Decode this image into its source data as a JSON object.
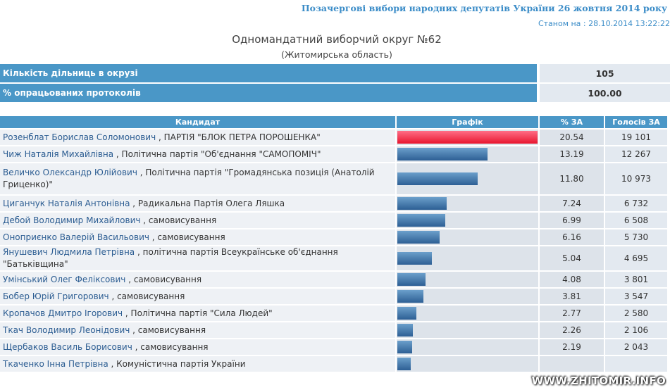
{
  "header": {
    "title": "Позачергові вибори народних депутатів України 26 жовтня 2014 року",
    "date": "Станом на : 28.10.2014 13:22:22"
  },
  "district": {
    "title": "Одномандатний виборчий округ №62",
    "region": "(Житомирська область)"
  },
  "summary": [
    {
      "label": "Кількість дільниць в окрузі",
      "value": "105"
    },
    {
      "label": "% опрацьованих протоколів",
      "value": "100.00"
    }
  ],
  "table": {
    "headers": {
      "candidate": "Кандидат",
      "graph": "Графік",
      "percent": "% ЗА",
      "votes": "Голосів ЗА"
    },
    "rows": [
      {
        "name": "Розенблат Борислав Соломонович",
        "party": ", ПАРТІЯ \"БЛОК ПЕТРА ПОРОШЕНКА\"",
        "percent": "20.54",
        "votes": "19 101",
        "share": 20.54
      },
      {
        "name": "Чиж Наталія Михайлівна",
        "party": ", Політична партія \"Об'єднання \"САМОПОМІЧ\"",
        "percent": "13.19",
        "votes": "12 267",
        "share": 13.19
      },
      {
        "name": "Величко Олександр Юлійович",
        "party": ", Політична партія \"Громадянська позиція (Анатолій Гриценко)\"",
        "percent": "11.80",
        "votes": "10 973",
        "share": 11.8
      },
      {
        "name": "Циганчук Наталія Антонівна",
        "party": ", Радикальна Партія Олега Ляшка",
        "percent": "7.24",
        "votes": "6 732",
        "share": 7.24
      },
      {
        "name": "Дебой Володимир Михайлович",
        "party": ", самовисування",
        "percent": "6.99",
        "votes": "6 508",
        "share": 6.99
      },
      {
        "name": "Оноприєнко Валерій Васильович",
        "party": ", самовисування",
        "percent": "6.16",
        "votes": "5 730",
        "share": 6.16
      },
      {
        "name": "Янушевич Людмила Петрівна",
        "party": ", політична партія Всеукраїнське об'єднання \"Батьківщина\"",
        "percent": "5.04",
        "votes": "4 695",
        "share": 5.04
      },
      {
        "name": "Умінський Олег Феліксович",
        "party": ", самовисування",
        "percent": "4.08",
        "votes": "3 801",
        "share": 4.08
      },
      {
        "name": "Бобер Юрій Григорович",
        "party": ", самовисування",
        "percent": "3.81",
        "votes": "3 547",
        "share": 3.81
      },
      {
        "name": "Кропачов Дмитро Ігорович",
        "party": ", Політична партія \"Сила Людей\"",
        "percent": "2.77",
        "votes": "2 580",
        "share": 2.77
      },
      {
        "name": "Ткач Володимир Леонідович",
        "party": ", самовисування",
        "percent": "2.26",
        "votes": "2 106",
        "share": 2.26
      },
      {
        "name": "Щербаков Василь Борисович",
        "party": ", самовисування",
        "percent": "2.19",
        "votes": "2 043",
        "share": 2.19
      },
      {
        "name": "Ткаченко Інна Петрівна",
        "party": ", Комуністична партія України",
        "percent": "",
        "votes": "",
        "share": 2.0
      }
    ]
  },
  "colors": {
    "header_blue": "#4a97c7",
    "lead_bar": "#e8162f",
    "bar": "#2d5f94"
  },
  "watermark": "WWW.ZHITOMIR.INFO"
}
